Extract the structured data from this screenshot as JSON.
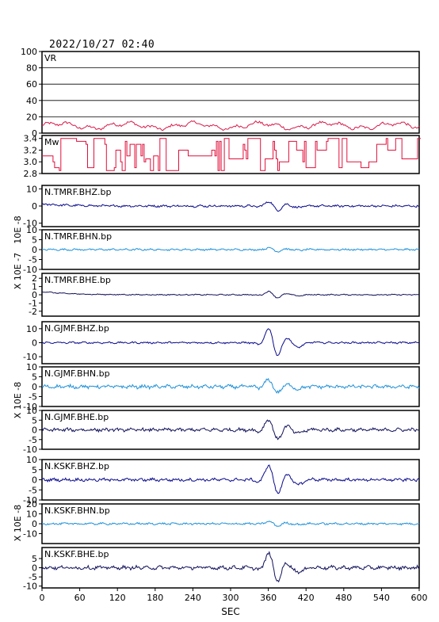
{
  "header": {
    "timestamp": "2022/10/27 02:40"
  },
  "chart_data": {
    "type": "line",
    "x": {
      "label": "SEC",
      "range": [
        0,
        600
      ],
      "ticks": [
        "0",
        "60",
        "120",
        "180",
        "240",
        "300",
        "360",
        "420",
        "480",
        "540",
        "600"
      ]
    },
    "colors": {
      "vr": "#d81b4a",
      "mw": "#e0103c",
      "bhz": "#0a0a8c",
      "bhn": "#1e90d8",
      "bhe": "#10105a",
      "frame": "#000000"
    },
    "panels": [
      {
        "id": "vr",
        "label": "VR",
        "ylim": [
          0,
          100
        ],
        "ticks": [
          "100",
          "80",
          "60",
          "40",
          "20",
          "0"
        ],
        "ylabel": "",
        "color": "vr",
        "kind": "vr",
        "baseline": 9
      },
      {
        "id": "mw",
        "label": "Mw",
        "ylim": [
          2.8,
          3.45
        ],
        "ticks": [
          "3.4",
          "3.2",
          "3.0",
          "2.8"
        ],
        "ylabel": "",
        "color": "mw",
        "kind": "mw"
      },
      {
        "id": "tmrf-bhz",
        "label": "N.TMRF.BHZ.bp",
        "ylim": [
          -12,
          12
        ],
        "ticks": [
          "10",
          "0",
          "-10"
        ],
        "ylabel": "",
        "color": "bhz",
        "kind": "wave",
        "amp": 3.5,
        "noise": 0.5,
        "drift": 1.2
      },
      {
        "id": "tmrf-bhn",
        "label": "N.TMRF.BHN.bp",
        "ylim": [
          -10,
          10
        ],
        "ticks": [
          "10",
          "5",
          "0",
          "-5",
          "-10"
        ],
        "ylabel": "",
        "color": "bhn",
        "kind": "wave",
        "amp": 1.2,
        "noise": 0.35,
        "drift": 0
      },
      {
        "id": "tmrf-bhe",
        "label": "N.TMRF.BHE.bp",
        "ylim": [
          -2.6,
          2.6
        ],
        "ticks": [
          "2",
          "1",
          "0",
          "-1",
          "-2"
        ],
        "ylabel": "",
        "color": "bhe",
        "kind": "wave",
        "amp": 0.5,
        "noise": 0.05,
        "drift": 0.4
      },
      {
        "id": "gjmf-bhz",
        "label": "N.GJMF.BHZ.bp",
        "ylim": [
          -15,
          15
        ],
        "ticks": [
          "10",
          "0",
          "-10"
        ],
        "ylabel": "",
        "color": "bhz",
        "kind": "wave",
        "amp": 13,
        "noise": 0.5,
        "drift": 0
      },
      {
        "id": "gjmf-bhn",
        "label": "N.GJMF.BHN.bp",
        "ylim": [
          -10,
          10
        ],
        "ticks": [
          "10",
          "5",
          "0",
          "-5",
          "-10"
        ],
        "ylabel": "",
        "color": "bhn",
        "kind": "wave",
        "amp": 4.5,
        "noise": 0.7,
        "drift": 0
      },
      {
        "id": "gjmf-bhe",
        "label": "N.GJMF.BHE.bp",
        "ylim": [
          -10,
          10
        ],
        "ticks": [
          "10",
          "5",
          "0",
          "-5",
          "-10"
        ],
        "ylabel": "",
        "color": "bhe",
        "kind": "wave",
        "amp": 7,
        "noise": 0.7,
        "drift": 0
      },
      {
        "id": "kskf-bhz",
        "label": "N.KSKF.BHZ.bp",
        "ylim": [
          -10,
          10
        ],
        "ticks": [
          "10",
          "5",
          "0",
          "-5",
          "-10"
        ],
        "ylabel": "",
        "color": "bhz",
        "kind": "wave",
        "amp": 9.5,
        "noise": 0.6,
        "drift": 0
      },
      {
        "id": "kskf-bhn",
        "label": "N.KSKF.BHN.bp",
        "ylim": [
          -20,
          20
        ],
        "ticks": [
          "20",
          "10",
          "0",
          "-10"
        ],
        "ylabel": "",
        "color": "bhn",
        "kind": "wave",
        "amp": 3,
        "noise": 0.8,
        "drift": 0
      },
      {
        "id": "kskf-bhe",
        "label": "N.KSKF.BHE.bp",
        "ylim": [
          -11,
          11
        ],
        "ticks": [
          "5",
          "0",
          "-5",
          "-10"
        ],
        "ylabel": "",
        "color": "bhe",
        "kind": "wave",
        "amp": 10,
        "noise": 0.8,
        "drift": 0
      }
    ],
    "side_labels": [
      {
        "text": "10E -8"
      },
      {
        "text": "X 10E -7"
      },
      {
        "text": "X 10E -8"
      },
      {
        "text": "X 10E -8"
      }
    ],
    "event_time": 368
  }
}
